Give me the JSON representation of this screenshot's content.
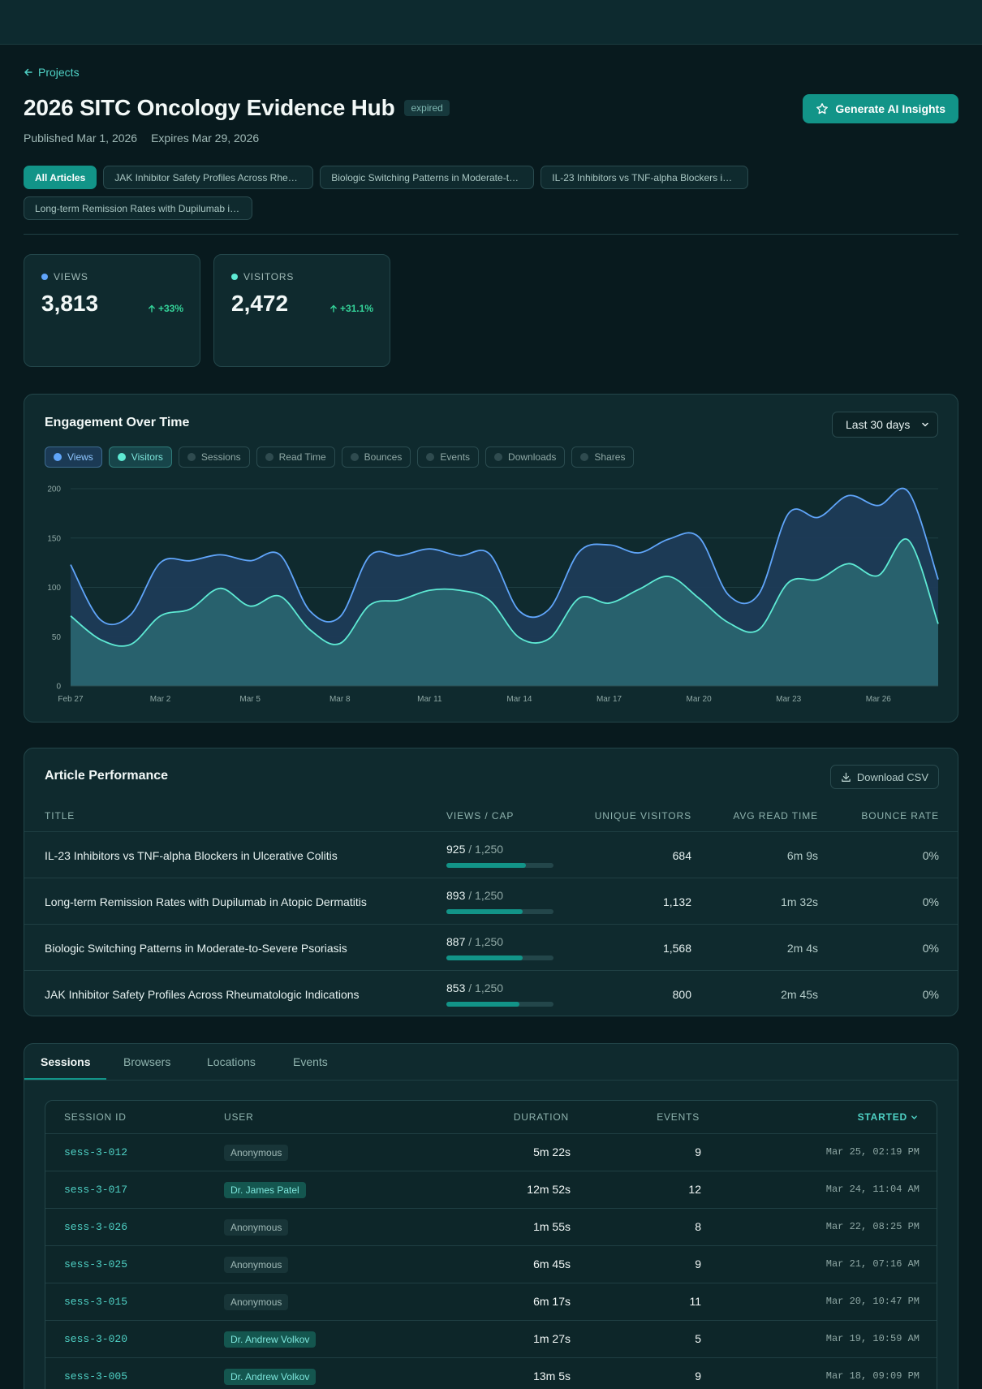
{
  "nav": {
    "back_label": "Projects"
  },
  "header": {
    "title": "2026 SITC Oncology Evidence Hub",
    "status_badge": "expired",
    "published": "Published Mar 1, 2026",
    "expires": "Expires Mar 29, 2026",
    "ai_button_label": "Generate AI Insights"
  },
  "article_tabs": [
    {
      "label": "All Articles",
      "active": true
    },
    {
      "label": "JAK Inhibitor Safety Profiles Across Rheumatologic Indications",
      "active": false
    },
    {
      "label": "Biologic Switching Patterns in Moderate-to-Severe Psoriasis",
      "active": false
    },
    {
      "label": "IL-23 Inhibitors vs TNF-alpha Blockers in Ulcerative Colitis",
      "active": false
    },
    {
      "label": "Long-term Remission Rates with Dupilumab in Atopic Dermatitis",
      "active": false
    }
  ],
  "stats": [
    {
      "label": "VIEWS",
      "value": "3,813",
      "change": "+33%",
      "color": "#60a5fa"
    },
    {
      "label": "VISITORS",
      "value": "2,472",
      "change": "+31.1%",
      "color": "#5eead4"
    }
  ],
  "engagement": {
    "title": "Engagement Over Time",
    "range": "Last 30 days",
    "metrics": [
      {
        "label": "Views",
        "active": true,
        "color": "#60a5fa"
      },
      {
        "label": "Visitors",
        "active": true,
        "color": "#5eead4"
      },
      {
        "label": "Sessions",
        "active": false
      },
      {
        "label": "Read Time",
        "active": false
      },
      {
        "label": "Bounces",
        "active": false
      },
      {
        "label": "Events",
        "active": false
      },
      {
        "label": "Downloads",
        "active": false
      },
      {
        "label": "Shares",
        "active": false
      }
    ]
  },
  "chart_data": {
    "type": "area",
    "title": "Engagement Over Time",
    "x": [
      "Feb 27",
      "Feb 28",
      "Mar 1",
      "Mar 2",
      "Mar 3",
      "Mar 4",
      "Mar 5",
      "Mar 6",
      "Mar 7",
      "Mar 8",
      "Mar 9",
      "Mar 10",
      "Mar 11",
      "Mar 12",
      "Mar 13",
      "Mar 14",
      "Mar 15",
      "Mar 16",
      "Mar 17",
      "Mar 18",
      "Mar 19",
      "Mar 20",
      "Mar 21",
      "Mar 22",
      "Mar 23",
      "Mar 24",
      "Mar 25",
      "Mar 26",
      "Mar 27",
      "Mar 28"
    ],
    "x_tick_labels": [
      "Feb 27",
      "Mar 2",
      "Mar 5",
      "Mar 8",
      "Mar 11",
      "Mar 14",
      "Mar 17",
      "Mar 20",
      "Mar 23",
      "Mar 26"
    ],
    "ylim": [
      0,
      200
    ],
    "y_ticks": [
      0,
      50,
      100,
      150,
      200
    ],
    "grid": true,
    "series": [
      {
        "name": "Views",
        "color": "#60a5fa",
        "values": [
          123,
          67,
          72,
          125,
          127,
          133,
          127,
          133,
          76,
          70,
          132,
          132,
          139,
          132,
          134,
          76,
          78,
          136,
          143,
          135,
          149,
          151,
          92,
          93,
          175,
          171,
          193,
          183,
          197,
          108
        ]
      },
      {
        "name": "Visitors",
        "color": "#5eead4",
        "values": [
          71,
          47,
          42,
          71,
          78,
          99,
          81,
          91,
          57,
          43,
          82,
          87,
          97,
          97,
          87,
          49,
          48,
          89,
          84,
          98,
          111,
          89,
          64,
          57,
          105,
          108,
          124,
          112,
          148,
          63
        ]
      }
    ]
  },
  "performance": {
    "title": "Article Performance",
    "csv_label": "Download CSV",
    "columns": [
      "TITLE",
      "VIEWS / CAP",
      "UNIQUE VISITORS",
      "AVG READ TIME",
      "BOUNCE RATE"
    ],
    "rows": [
      {
        "title": "IL-23 Inhibitors vs TNF-alpha Blockers in Ulcerative Colitis",
        "views": "925",
        "cap": "/ 1,250",
        "progress": 0.74,
        "visitors": "684",
        "read_time": "6m 9s",
        "bounce": "0%"
      },
      {
        "title": "Long-term Remission Rates with Dupilumab in Atopic Dermatitis",
        "views": "893",
        "cap": "/ 1,250",
        "progress": 0.714,
        "visitors": "1,132",
        "read_time": "1m 32s",
        "bounce": "0%"
      },
      {
        "title": "Biologic Switching Patterns in Moderate-to-Severe Psoriasis",
        "views": "887",
        "cap": "/ 1,250",
        "progress": 0.71,
        "visitors": "1,568",
        "read_time": "2m 4s",
        "bounce": "0%"
      },
      {
        "title": "JAK Inhibitor Safety Profiles Across Rheumatologic Indications",
        "views": "853",
        "cap": "/ 1,250",
        "progress": 0.682,
        "visitors": "800",
        "read_time": "2m 45s",
        "bounce": "0%"
      }
    ]
  },
  "sessions": {
    "tabs": [
      "Sessions",
      "Browsers",
      "Locations",
      "Events"
    ],
    "columns": [
      "SESSION ID",
      "USER",
      "DURATION",
      "EVENTS",
      "STARTED"
    ],
    "rows": [
      {
        "id": "sess-3-012",
        "user": "Anonymous",
        "named": false,
        "duration": "5m 22s",
        "events": "9",
        "started": "Mar 25, 02:19 PM"
      },
      {
        "id": "sess-3-017",
        "user": "Dr. James Patel",
        "named": true,
        "duration": "12m 52s",
        "events": "12",
        "started": "Mar 24, 11:04 AM"
      },
      {
        "id": "sess-3-026",
        "user": "Anonymous",
        "named": false,
        "duration": "1m 55s",
        "events": "8",
        "started": "Mar 22, 08:25 PM"
      },
      {
        "id": "sess-3-025",
        "user": "Anonymous",
        "named": false,
        "duration": "6m 45s",
        "events": "9",
        "started": "Mar 21, 07:16 AM"
      },
      {
        "id": "sess-3-015",
        "user": "Anonymous",
        "named": false,
        "duration": "6m 17s",
        "events": "11",
        "started": "Mar 20, 10:47 PM"
      },
      {
        "id": "sess-3-020",
        "user": "Dr. Andrew Volkov",
        "named": true,
        "duration": "1m 27s",
        "events": "5",
        "started": "Mar 19, 10:59 AM"
      },
      {
        "id": "sess-3-005",
        "user": "Dr. Andrew Volkov",
        "named": true,
        "duration": "13m 5s",
        "events": "9",
        "started": "Mar 18, 09:09 PM"
      }
    ]
  }
}
